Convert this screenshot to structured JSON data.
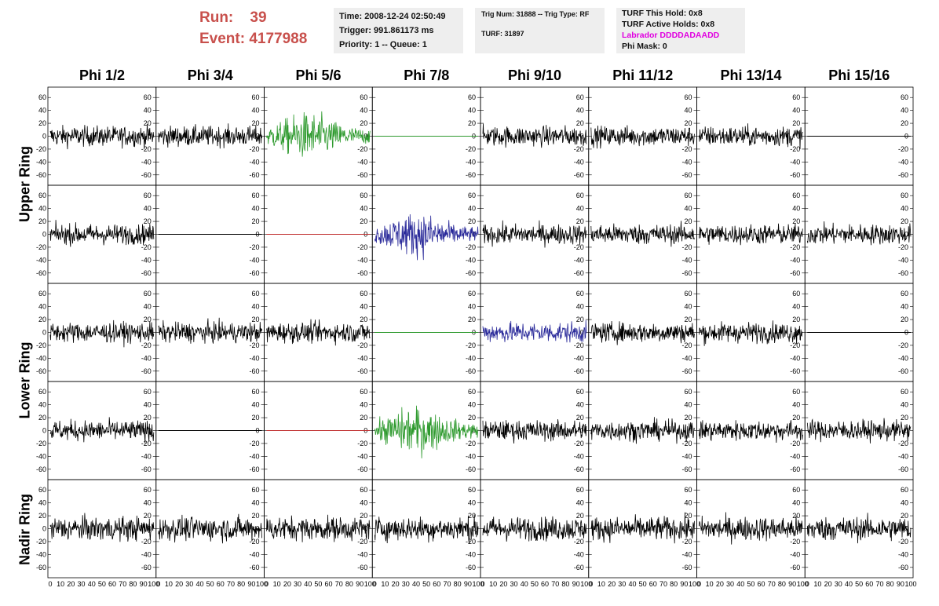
{
  "header": {
    "run_line": "Run:    39",
    "event_line": "Event: 4177988"
  },
  "info_box_1": {
    "time": "Time: 2008-12-24 02:50:49",
    "trigger": "Trigger: 991.861173 ms",
    "priority": "Priority: 1 -- Queue: 1"
  },
  "info_box_2": {
    "trig": "Trig Num: 31888 -- Trig Type: RF",
    "turf": "TURF: 31897"
  },
  "info_box_3": {
    "hold": "TURF This Hold: 0x8",
    "active": "TURF Active Holds: 0x8",
    "labrador": "Labrador DDDDADAADD",
    "phimask": "Phi Mask: 0"
  },
  "columns": [
    "Phi 1/2",
    "Phi 3/4",
    "Phi 5/6",
    "Phi 7/8",
    "Phi 9/10",
    "Phi 11/12",
    "Phi 13/14",
    "Phi 15/16"
  ],
  "rows": [
    "Upper Ring",
    "Lower Ring",
    "Nadir Ring"
  ],
  "colors": {
    "run": "#c8504c",
    "magenta": "#e000e0",
    "green": "#2e9a2e",
    "blue": "#2a2a9a",
    "red": "#c03030",
    "black": "#000000"
  },
  "axis": {
    "y_ticks": [
      "60",
      "40",
      "20",
      "0",
      "-20",
      "-40",
      "-60"
    ],
    "x_ticks": [
      "0",
      "10",
      "20",
      "30",
      "40",
      "50",
      "60",
      "70",
      "80",
      "90",
      "100"
    ]
  },
  "chart_data": {
    "type": "line",
    "grid": "off",
    "ylim": [
      -70,
      70
    ],
    "xlim": [
      0,
      100
    ],
    "panels": [
      [
        "noise",
        "noise",
        "green-burst",
        "flat-green",
        "noise",
        "noise",
        "noise",
        "flat-black"
      ],
      [
        "noise",
        "flat-black",
        "flat-red",
        "blue-burst",
        "noise",
        "noise",
        "noise",
        "noise"
      ],
      [
        "noise",
        "noise",
        "noise",
        "flat-green",
        "blue-noise",
        "noise",
        "noise",
        "flat-black"
      ],
      [
        "noise",
        "flat-black",
        "flat-red",
        "green-burst",
        "noise",
        "noise",
        "noise",
        "noise"
      ],
      [
        "noise",
        "noise",
        "noise",
        "noise",
        "noise",
        "noise",
        "noise",
        "noise"
      ]
    ]
  }
}
